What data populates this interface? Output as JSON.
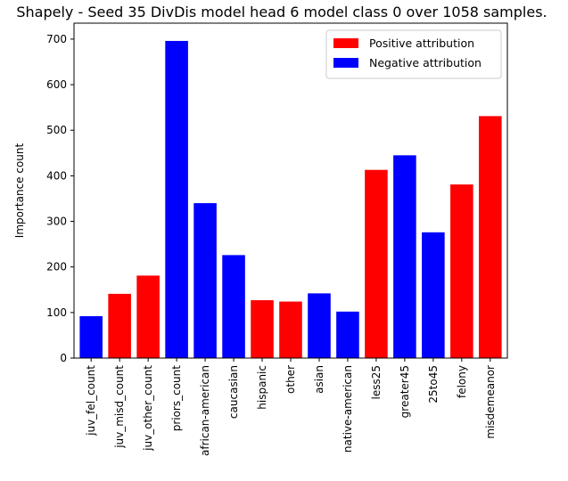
{
  "chart_data": {
    "type": "bar",
    "title": "Shapely - Seed 35 DivDis model head 6 model class 0 over 1058 samples.",
    "xlabel": "",
    "ylabel": "Importance count",
    "ylim": [
      0,
      735
    ],
    "yticks": [
      0,
      100,
      200,
      300,
      400,
      500,
      600,
      700
    ],
    "grid": false,
    "legend_position": "top-right",
    "categories": [
      "juv_fel_count",
      "juv_misd_count",
      "juv_other_count",
      "priors_count",
      "african-american",
      "caucasian",
      "hispanic",
      "other",
      "asian",
      "native-american",
      "less25",
      "greater45",
      "25to45",
      "felony",
      "misdemeanor"
    ],
    "values": [
      92,
      141,
      181,
      696,
      340,
      226,
      127,
      124,
      142,
      102,
      413,
      445,
      276,
      381,
      531
    ],
    "attribution": [
      "negative",
      "positive",
      "positive",
      "negative",
      "negative",
      "negative",
      "positive",
      "positive",
      "negative",
      "negative",
      "positive",
      "negative",
      "negative",
      "positive",
      "positive"
    ],
    "legend": [
      {
        "key": "positive",
        "label": "Positive attribution",
        "color": "#ff0000"
      },
      {
        "key": "negative",
        "label": "Negative attribution",
        "color": "#0000ff"
      }
    ]
  }
}
